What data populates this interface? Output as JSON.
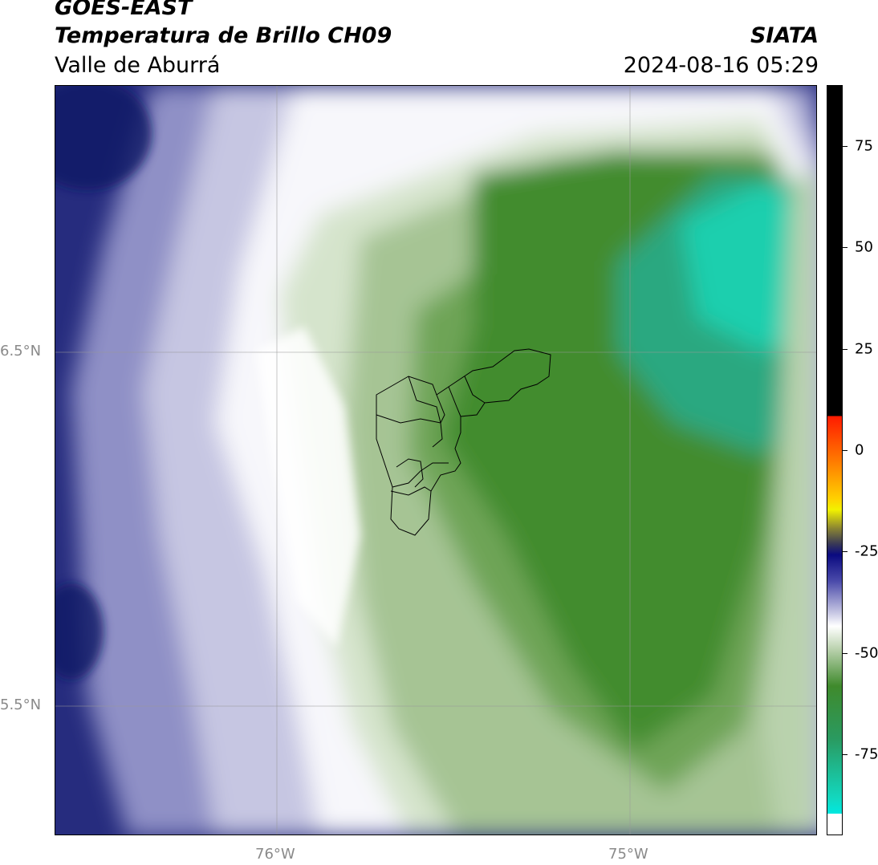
{
  "header": {
    "satellite": "GOES-EAST",
    "product": "Temperatura de Brillo CH09",
    "region": "Valle de Aburrá",
    "agency": "SIATA",
    "datetime": "2024-08-16 05:29"
  },
  "map": {
    "latitude_labels": [
      "6.5°N",
      "5.5°N"
    ],
    "longitude_labels": [
      "76°W",
      "75°W"
    ],
    "overlay": "Valle de Aburrá municipality boundaries"
  },
  "colorbar": {
    "tick_labels": [
      "75",
      "50",
      "25",
      "0",
      "-25",
      "-50",
      "-75"
    ],
    "tick_values": [
      75,
      50,
      25,
      0,
      -25,
      -50,
      -75
    ],
    "range": [
      -95,
      90
    ],
    "colors": {
      "warm_top": "#000000",
      "red": "#ff2000",
      "orange": "#ff8c00",
      "yellow": "#ffff00",
      "olive": "#6f6a30",
      "navy": "#1a1a7a",
      "lavender": "#b8b8dc",
      "white": "#ffffff",
      "light_green": "#c9dcc0",
      "green": "#3f8a2c",
      "cyan": "#1fd4b0",
      "bottom_white": "#ffffff"
    }
  }
}
